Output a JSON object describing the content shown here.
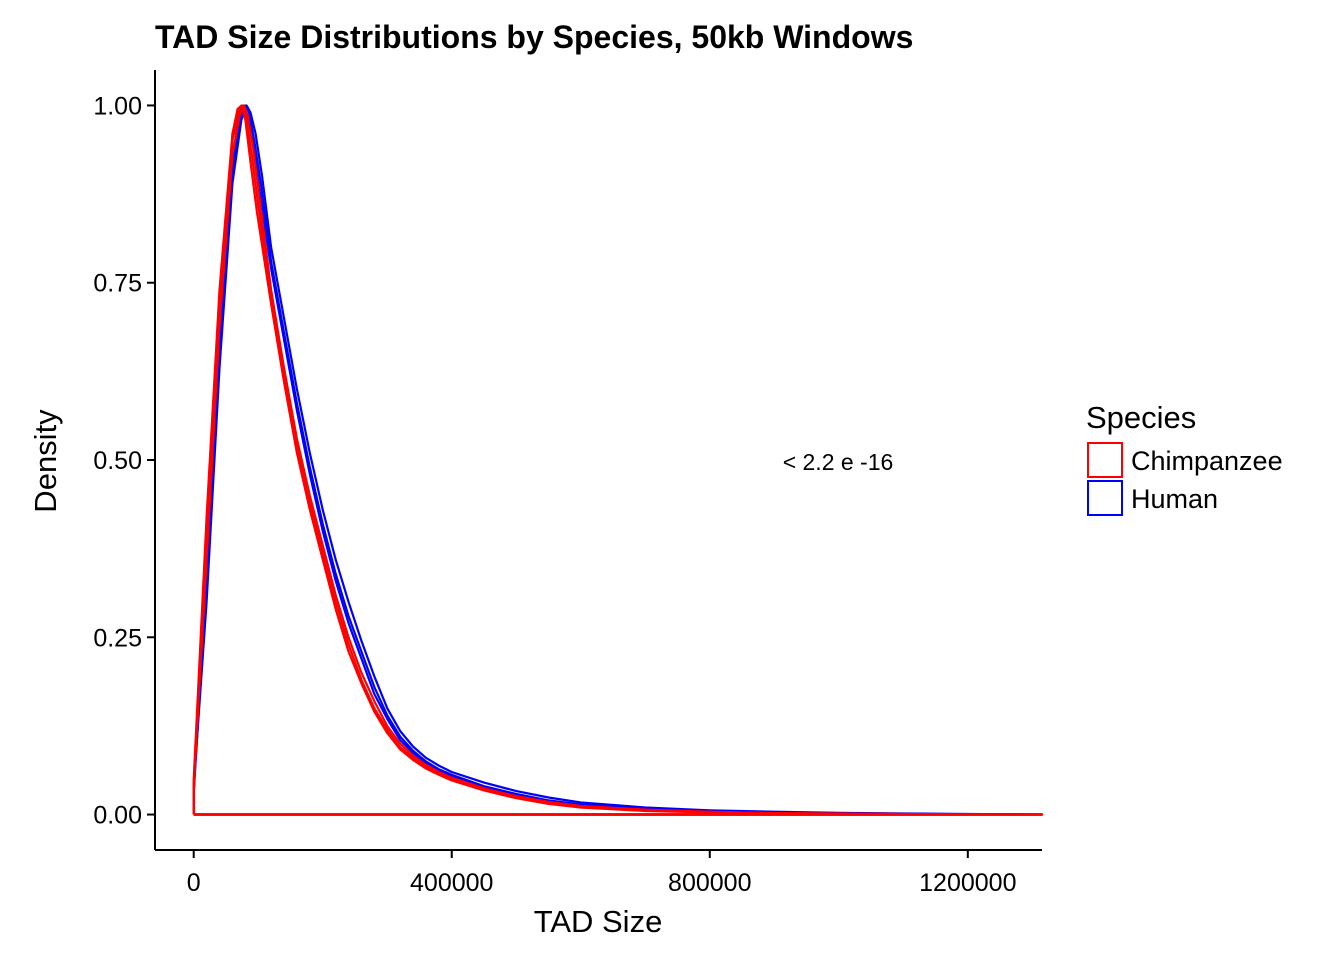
{
  "chart_data": {
    "type": "line",
    "title": "TAD Size Distributions by Species, 50kb Windows",
    "xlabel": "TAD Size",
    "ylabel": "Density",
    "xlim": [
      -60000,
      1315000
    ],
    "ylim": [
      -0.05,
      1.05
    ],
    "x_ticks": [
      0,
      400000,
      800000,
      1200000
    ],
    "x_tick_labels": [
      "0",
      "400000",
      "800000",
      "1200000"
    ],
    "y_ticks": [
      0,
      0.25,
      0.5,
      0.75,
      1.0
    ],
    "y_tick_labels": [
      "0.00",
      "0.25",
      "0.50",
      "0.75",
      "1.00"
    ],
    "grid": false,
    "annotation": {
      "text": "< 2.2 e -16",
      "x": 1000000,
      "y": 0.5
    },
    "legend": {
      "title": "Species",
      "position": "right",
      "entries": [
        {
          "label": "Chimpanzee",
          "color": "#ff0000"
        },
        {
          "label": "Human",
          "color": "#0000ff"
        }
      ]
    },
    "series": [
      {
        "species": "Chimpanzee",
        "color": "#ff0000",
        "x": [
          0,
          20000,
          40000,
          60000,
          70000,
          76000,
          82000,
          90000,
          100000,
          120000,
          140000,
          160000,
          180000,
          200000,
          220000,
          240000,
          260000,
          280000,
          300000,
          320000,
          340000,
          360000,
          380000,
          400000,
          450000,
          500000,
          550000,
          600000,
          700000,
          800000,
          900000,
          1000000,
          1100000,
          1200000,
          1315000
        ],
        "y": [
          0.03,
          0.4,
          0.72,
          0.95,
          0.995,
          1.0,
          0.98,
          0.93,
          0.86,
          0.73,
          0.62,
          0.52,
          0.44,
          0.37,
          0.3,
          0.24,
          0.19,
          0.15,
          0.12,
          0.095,
          0.08,
          0.068,
          0.058,
          0.05,
          0.035,
          0.024,
          0.016,
          0.011,
          0.006,
          0.003,
          0.002,
          0.001,
          0.0005,
          0.0003,
          0.0
        ]
      },
      {
        "species": "Chimpanzee",
        "color": "#ff0000",
        "x": [
          0,
          20000,
          40000,
          60000,
          72000,
          78000,
          84000,
          92000,
          102000,
          120000,
          140000,
          160000,
          180000,
          200000,
          220000,
          240000,
          260000,
          280000,
          300000,
          320000,
          340000,
          360000,
          380000,
          400000,
          450000,
          500000,
          550000,
          600000,
          700000,
          800000,
          900000,
          1000000,
          1100000,
          1200000,
          1315000
        ],
        "y": [
          0.04,
          0.36,
          0.69,
          0.93,
          0.99,
          1.0,
          0.985,
          0.94,
          0.87,
          0.74,
          0.63,
          0.53,
          0.45,
          0.38,
          0.31,
          0.25,
          0.2,
          0.16,
          0.125,
          0.1,
          0.083,
          0.07,
          0.06,
          0.052,
          0.037,
          0.026,
          0.018,
          0.012,
          0.007,
          0.004,
          0.002,
          0.0015,
          0.0008,
          0.0004,
          0.0
        ]
      },
      {
        "species": "Chimpanzee",
        "color": "#ff0000",
        "x": [
          0,
          20000,
          40000,
          60000,
          68000,
          74000,
          80000,
          88000,
          98000,
          120000,
          140000,
          160000,
          180000,
          200000,
          220000,
          240000,
          260000,
          280000,
          300000,
          320000,
          340000,
          360000,
          380000,
          400000,
          450000,
          500000,
          550000,
          600000,
          700000,
          800000,
          900000,
          1000000,
          1100000,
          1200000,
          1315000
        ],
        "y": [
          0.05,
          0.42,
          0.74,
          0.96,
          0.995,
          1.0,
          0.98,
          0.92,
          0.85,
          0.72,
          0.61,
          0.51,
          0.43,
          0.36,
          0.29,
          0.23,
          0.185,
          0.145,
          0.115,
          0.092,
          0.077,
          0.065,
          0.056,
          0.048,
          0.034,
          0.023,
          0.015,
          0.01,
          0.005,
          0.003,
          0.0015,
          0.001,
          0.0005,
          0.0002,
          0.0
        ]
      },
      {
        "species": "Human",
        "color": "#0000ff",
        "x": [
          0,
          20000,
          40000,
          60000,
          72000,
          80000,
          86000,
          94000,
          104000,
          120000,
          140000,
          160000,
          180000,
          200000,
          220000,
          240000,
          260000,
          280000,
          300000,
          320000,
          340000,
          360000,
          380000,
          400000,
          450000,
          500000,
          550000,
          600000,
          700000,
          800000,
          900000,
          1000000,
          1100000,
          1200000,
          1315000
        ],
        "y": [
          0.03,
          0.33,
          0.66,
          0.91,
          0.985,
          1.0,
          0.99,
          0.95,
          0.89,
          0.78,
          0.68,
          0.58,
          0.49,
          0.41,
          0.34,
          0.28,
          0.23,
          0.18,
          0.14,
          0.11,
          0.09,
          0.075,
          0.064,
          0.056,
          0.04,
          0.029,
          0.02,
          0.014,
          0.008,
          0.005,
          0.003,
          0.002,
          0.001,
          0.0005,
          0.0
        ]
      },
      {
        "species": "Human",
        "color": "#0000ff",
        "x": [
          0,
          20000,
          40000,
          60000,
          74000,
          82000,
          88000,
          96000,
          106000,
          120000,
          140000,
          160000,
          180000,
          200000,
          220000,
          240000,
          260000,
          280000,
          300000,
          320000,
          340000,
          360000,
          380000,
          400000,
          450000,
          500000,
          550000,
          600000,
          700000,
          800000,
          900000,
          1000000,
          1100000,
          1200000,
          1315000
        ],
        "y": [
          0.04,
          0.3,
          0.63,
          0.89,
          0.98,
          1.0,
          0.99,
          0.96,
          0.9,
          0.8,
          0.7,
          0.6,
          0.51,
          0.43,
          0.36,
          0.3,
          0.245,
          0.195,
          0.15,
          0.118,
          0.096,
          0.08,
          0.069,
          0.06,
          0.045,
          0.033,
          0.024,
          0.017,
          0.01,
          0.006,
          0.004,
          0.0025,
          0.0015,
          0.0007,
          0.0
        ]
      },
      {
        "species": "Human",
        "color": "#0000ff",
        "x": [
          0,
          20000,
          40000,
          60000,
          70000,
          78000,
          84000,
          92000,
          102000,
          120000,
          140000,
          160000,
          180000,
          200000,
          220000,
          240000,
          260000,
          280000,
          300000,
          320000,
          340000,
          360000,
          380000,
          400000,
          450000,
          500000,
          550000,
          600000,
          700000,
          800000,
          900000,
          1000000,
          1100000,
          1200000,
          1315000
        ],
        "y": [
          0.035,
          0.34,
          0.67,
          0.92,
          0.99,
          1.0,
          0.985,
          0.945,
          0.88,
          0.77,
          0.67,
          0.57,
          0.48,
          0.4,
          0.33,
          0.27,
          0.22,
          0.17,
          0.135,
          0.105,
          0.087,
          0.073,
          0.062,
          0.054,
          0.039,
          0.028,
          0.019,
          0.013,
          0.007,
          0.004,
          0.0025,
          0.0018,
          0.001,
          0.0004,
          0.0
        ]
      }
    ]
  }
}
